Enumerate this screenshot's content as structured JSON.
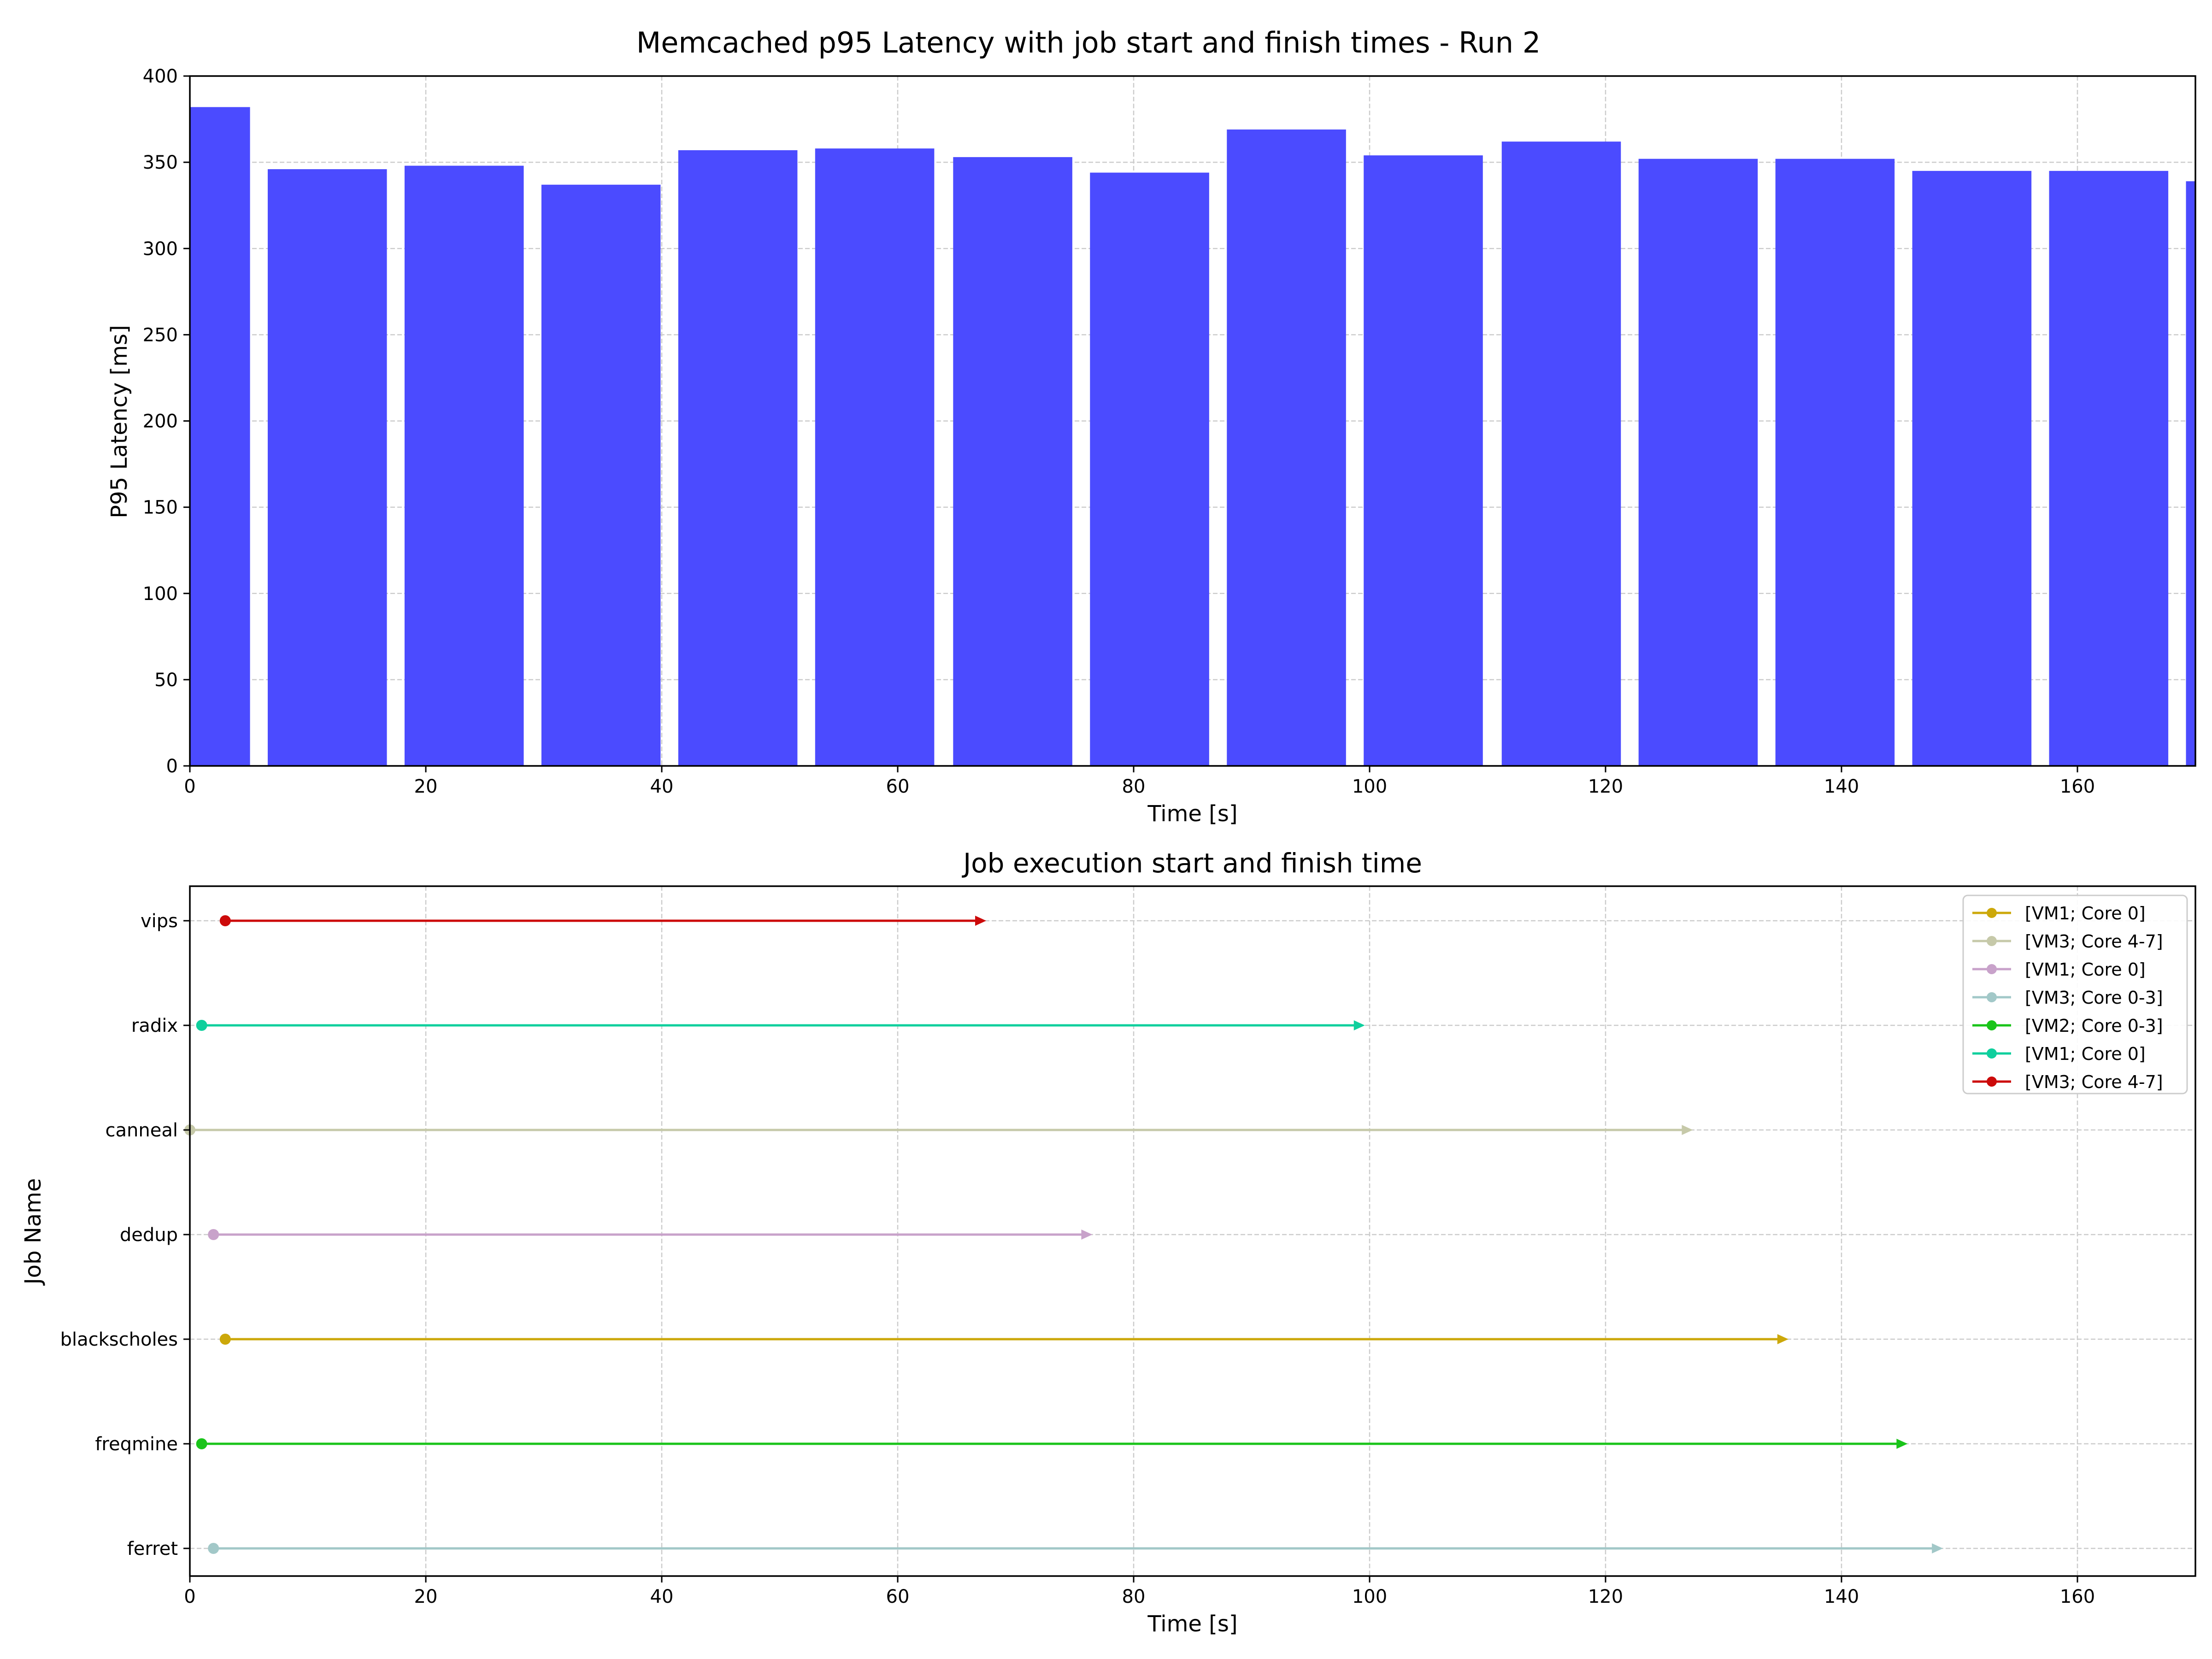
{
  "chart_data": [
    {
      "type": "bar",
      "title": "Memcached p95 Latency with job start and finish times - Run 2",
      "xlabel": "Time [s]",
      "ylabel": "P95 Latency [ms]",
      "xlim": [
        0,
        170
      ],
      "ylim": [
        0,
        400
      ],
      "xticks": [
        0,
        20,
        40,
        60,
        80,
        100,
        120,
        140,
        160
      ],
      "yticks": [
        0,
        50,
        100,
        150,
        200,
        250,
        300,
        350,
        400
      ],
      "grid": true,
      "bar_color": "#4b4bff",
      "bars": [
        {
          "x_start": 0,
          "x_end": 5.1,
          "value": 382
        },
        {
          "x_start": 6.6,
          "x_end": 16.7,
          "value": 346
        },
        {
          "x_start": 18.2,
          "x_end": 28.3,
          "value": 348
        },
        {
          "x_start": 29.8,
          "x_end": 39.9,
          "value": 337
        },
        {
          "x_start": 41.4,
          "x_end": 51.5,
          "value": 357
        },
        {
          "x_start": 53.0,
          "x_end": 63.1,
          "value": 358
        },
        {
          "x_start": 64.7,
          "x_end": 74.8,
          "value": 353
        },
        {
          "x_start": 76.3,
          "x_end": 86.4,
          "value": 344
        },
        {
          "x_start": 87.9,
          "x_end": 98.0,
          "value": 369
        },
        {
          "x_start": 99.5,
          "x_end": 109.6,
          "value": 354
        },
        {
          "x_start": 111.2,
          "x_end": 121.3,
          "value": 362
        },
        {
          "x_start": 122.8,
          "x_end": 132.9,
          "value": 352
        },
        {
          "x_start": 134.4,
          "x_end": 144.5,
          "value": 352
        },
        {
          "x_start": 146.0,
          "x_end": 156.1,
          "value": 345
        },
        {
          "x_start": 157.6,
          "x_end": 167.7,
          "value": 345
        },
        {
          "x_start": 169.2,
          "x_end": 179.3,
          "value": 339
        }
      ]
    },
    {
      "type": "timeline",
      "title": "Job execution start and finish time",
      "xlabel": "Time [s]",
      "ylabel": "Job Name",
      "xlim": [
        0,
        170
      ],
      "xticks": [
        0,
        20,
        40,
        60,
        80,
        100,
        120,
        140,
        160
      ],
      "grid": true,
      "legend_position": "top-right",
      "jobs": [
        {
          "name": "vips",
          "start": 3.0,
          "end": 67.5,
          "color": "#cc0a0a",
          "legend": "[VM3; Core 4-7]"
        },
        {
          "name": "radix",
          "start": 1.0,
          "end": 99.6,
          "color": "#0fcf9d",
          "legend": "[VM1; Core 0]"
        },
        {
          "name": "canneal",
          "start": 0.0,
          "end": 127.4,
          "color": "#c6c9a9",
          "legend": "[VM3; Core 4-7]"
        },
        {
          "name": "dedup",
          "start": 2.0,
          "end": 76.5,
          "color": "#c8a2ca",
          "legend": "[VM1; Core 0]"
        },
        {
          "name": "blackscholes",
          "start": 3.0,
          "end": 135.5,
          "color": "#cca80a",
          "legend": "[VM1; Core 0]"
        },
        {
          "name": "freqmine",
          "start": 1.0,
          "end": 145.6,
          "color": "#1ac41a",
          "legend": "[VM2; Core 0-3]"
        },
        {
          "name": "ferret",
          "start": 2.0,
          "end": 148.6,
          "color": "#a2c8c8",
          "legend": "[VM3; Core 0-3]"
        }
      ],
      "legend_order": [
        "blackscholes",
        "canneal",
        "dedup",
        "ferret",
        "freqmine",
        "radix",
        "vips"
      ]
    }
  ]
}
